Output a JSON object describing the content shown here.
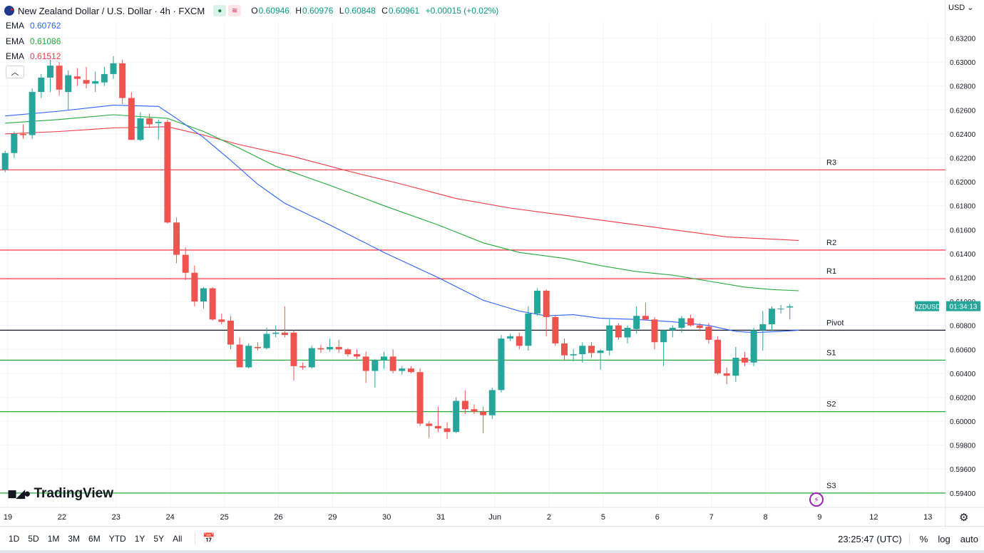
{
  "header": {
    "title": "New Zealand Dollar / U.S. Dollar · 4h · FXCM",
    "ohlc": [
      {
        "k": "O",
        "v": "0.60946"
      },
      {
        "k": "H",
        "v": "0.60976"
      },
      {
        "k": "L",
        "v": "0.60848"
      },
      {
        "k": "C",
        "v": "0.60961"
      }
    ],
    "change": "+0.00015 (+0.02%)"
  },
  "indicators": [
    {
      "label": "EMA",
      "value": "0.60762",
      "color": "#2962ff"
    },
    {
      "label": "EMA",
      "value": "0.61086",
      "color": "#22ab38"
    },
    {
      "label": "EMA",
      "value": "0.61512",
      "color": "#f23645"
    }
  ],
  "currency": "USD",
  "logo_text": "TradingView",
  "timeframes": [
    "1D",
    "5D",
    "1M",
    "3M",
    "6M",
    "YTD",
    "1Y",
    "5Y",
    "All"
  ],
  "status": {
    "time": "23:25:47 (UTC)",
    "percent": "%",
    "log": "log",
    "auto": "auto"
  },
  "chart_data": {
    "type": "candlestick",
    "symbol": "NZDUSD",
    "countdown": "01:34:13",
    "last_price": 0.60961,
    "ylim": [
      0.5928,
      0.6334
    ],
    "y_ticks": [
      "0.63200",
      "0.63000",
      "0.62800",
      "0.62600",
      "0.62400",
      "0.62200",
      "0.62000",
      "0.61800",
      "0.61600",
      "0.61400",
      "0.61200",
      "0.61000",
      "0.60800",
      "0.60600",
      "0.60400",
      "0.60200",
      "0.60000",
      "0.59800",
      "0.59600",
      "0.59400"
    ],
    "x_ticks": [
      {
        "label": "19",
        "bar": 0.3
      },
      {
        "label": "22",
        "bar": 6.3
      },
      {
        "label": "23",
        "bar": 12.3
      },
      {
        "label": "24",
        "bar": 18.3
      },
      {
        "label": "25",
        "bar": 24.3
      },
      {
        "label": "26",
        "bar": 30.3
      },
      {
        "label": "29",
        "bar": 36.3
      },
      {
        "label": "30",
        "bar": 42.3
      },
      {
        "label": "31",
        "bar": 48.3
      },
      {
        "label": "Jun",
        "bar": 54.3
      },
      {
        "label": "2",
        "bar": 60.3
      },
      {
        "label": "5",
        "bar": 66.3
      },
      {
        "label": "6",
        "bar": 72.3
      },
      {
        "label": "7",
        "bar": 78.3
      },
      {
        "label": "8",
        "bar": 84.3
      },
      {
        "label": "9",
        "bar": 90.3
      },
      {
        "label": "12",
        "bar": 96.3
      },
      {
        "label": "13",
        "bar": 102.3
      }
    ],
    "candles": [
      [
        0.621,
        0.6226,
        0.6208,
        0.6224
      ],
      [
        0.6224,
        0.6242,
        0.622,
        0.624
      ],
      [
        0.624,
        0.6248,
        0.6236,
        0.6239
      ],
      [
        0.6239,
        0.6278,
        0.6236,
        0.6275
      ],
      [
        0.6275,
        0.629,
        0.627,
        0.6287
      ],
      [
        0.6287,
        0.6302,
        0.6275,
        0.6297
      ],
      [
        0.6297,
        0.63,
        0.6272,
        0.6277
      ],
      [
        0.6275,
        0.6293,
        0.626,
        0.6289
      ],
      [
        0.6288,
        0.6295,
        0.628,
        0.6286
      ],
      [
        0.6285,
        0.6296,
        0.6278,
        0.6282
      ],
      [
        0.6282,
        0.6292,
        0.6275,
        0.6284
      ],
      [
        0.6283,
        0.6296,
        0.628,
        0.629
      ],
      [
        0.629,
        0.6305,
        0.6286,
        0.6299
      ],
      [
        0.6299,
        0.6302,
        0.6265,
        0.627
      ],
      [
        0.627,
        0.6275,
        0.6235,
        0.6235
      ],
      [
        0.6235,
        0.6258,
        0.6234,
        0.6253
      ],
      [
        0.6253,
        0.6257,
        0.6245,
        0.6248
      ],
      [
        0.6249,
        0.6252,
        0.6235,
        0.625
      ],
      [
        0.625,
        0.6252,
        0.6165,
        0.6166
      ],
      [
        0.6166,
        0.617,
        0.6132,
        0.6139
      ],
      [
        0.6139,
        0.6145,
        0.6118,
        0.6124
      ],
      [
        0.6124,
        0.613,
        0.6096,
        0.61
      ],
      [
        0.61,
        0.6112,
        0.6094,
        0.6111
      ],
      [
        0.6111,
        0.6112,
        0.6084,
        0.6085
      ],
      [
        0.6085,
        0.609,
        0.6081,
        0.6083
      ],
      [
        0.6084,
        0.6088,
        0.606,
        0.6064
      ],
      [
        0.6064,
        0.607,
        0.6045,
        0.6045
      ],
      [
        0.6045,
        0.6065,
        0.6044,
        0.6063
      ],
      [
        0.6062,
        0.6066,
        0.6059,
        0.6061
      ],
      [
        0.6061,
        0.6078,
        0.606,
        0.6073
      ],
      [
        0.6073,
        0.608,
        0.607,
        0.6074
      ],
      [
        0.6074,
        0.6096,
        0.607,
        0.6072
      ],
      [
        0.6074,
        0.6076,
        0.6034,
        0.6046
      ],
      [
        0.6046,
        0.6049,
        0.6043,
        0.6045
      ],
      [
        0.6045,
        0.6063,
        0.6044,
        0.6061
      ],
      [
        0.6061,
        0.6064,
        0.6057,
        0.606
      ],
      [
        0.606,
        0.6069,
        0.6058,
        0.6062
      ],
      [
        0.6062,
        0.6068,
        0.6057,
        0.606
      ],
      [
        0.606,
        0.6061,
        0.6054,
        0.6056
      ],
      [
        0.6056,
        0.606,
        0.6052,
        0.6054
      ],
      [
        0.6054,
        0.6058,
        0.6032,
        0.6042
      ],
      [
        0.6042,
        0.6052,
        0.6028,
        0.6051
      ],
      [
        0.6051,
        0.6058,
        0.6044,
        0.6054
      ],
      [
        0.6054,
        0.606,
        0.604,
        0.6042
      ],
      [
        0.6042,
        0.6046,
        0.6039,
        0.6044
      ],
      [
        0.6044,
        0.6046,
        0.604,
        0.6041
      ],
      [
        0.6041,
        0.6044,
        0.5996,
        0.5998
      ],
      [
        0.5998,
        0.6,
        0.5986,
        0.5996
      ],
      [
        0.5996,
        0.6012,
        0.5991,
        0.5994
      ],
      [
        0.5994,
        0.5999,
        0.5985,
        0.5991
      ],
      [
        0.5991,
        0.602,
        0.599,
        0.6017
      ],
      [
        0.6017,
        0.6026,
        0.6006,
        0.601
      ],
      [
        0.601,
        0.6014,
        0.6006,
        0.6008
      ],
      [
        0.6008,
        0.6012,
        0.599,
        0.6005
      ],
      [
        0.6005,
        0.6028,
        0.6002,
        0.6026
      ],
      [
        0.6026,
        0.6072,
        0.6024,
        0.6069
      ],
      [
        0.6069,
        0.6073,
        0.6067,
        0.6071
      ],
      [
        0.6071,
        0.6074,
        0.606,
        0.6063
      ],
      [
        0.6063,
        0.6096,
        0.6059,
        0.609
      ],
      [
        0.609,
        0.6111,
        0.6088,
        0.6109
      ],
      [
        0.6109,
        0.611,
        0.6071,
        0.6087
      ],
      [
        0.6087,
        0.6089,
        0.6063,
        0.6065
      ],
      [
        0.6065,
        0.6069,
        0.6051,
        0.6055
      ],
      [
        0.6055,
        0.606,
        0.605,
        0.6056
      ],
      [
        0.6056,
        0.6066,
        0.6049,
        0.6063
      ],
      [
        0.6063,
        0.6066,
        0.6053,
        0.6057
      ],
      [
        0.6057,
        0.606,
        0.6043,
        0.6059
      ],
      [
        0.6059,
        0.6085,
        0.6055,
        0.608
      ],
      [
        0.608,
        0.6082,
        0.6068,
        0.607
      ],
      [
        0.607,
        0.608,
        0.6065,
        0.6078
      ],
      [
        0.6077,
        0.6096,
        0.6073,
        0.6088
      ],
      [
        0.6088,
        0.6099,
        0.6084,
        0.6085
      ],
      [
        0.6085,
        0.6087,
        0.606,
        0.6066
      ],
      [
        0.6066,
        0.6076,
        0.6046,
        0.6076
      ],
      [
        0.6076,
        0.608,
        0.607,
        0.6078
      ],
      [
        0.6078,
        0.6088,
        0.6074,
        0.6086
      ],
      [
        0.6086,
        0.6089,
        0.6079,
        0.608
      ],
      [
        0.608,
        0.6082,
        0.6075,
        0.6078
      ],
      [
        0.6079,
        0.6082,
        0.6065,
        0.6068
      ],
      [
        0.6068,
        0.6071,
        0.6039,
        0.604
      ],
      [
        0.604,
        0.6045,
        0.6031,
        0.6038
      ],
      [
        0.6038,
        0.6062,
        0.6033,
        0.6053
      ],
      [
        0.6053,
        0.6058,
        0.6046,
        0.6049
      ],
      [
        0.6049,
        0.6078,
        0.6046,
        0.6076
      ],
      [
        0.6076,
        0.6092,
        0.6059,
        0.6081
      ],
      [
        0.6081,
        0.6096,
        0.6076,
        0.6094
      ],
      [
        0.6094,
        0.6097,
        0.609,
        0.6094
      ],
      [
        0.6095,
        0.6098,
        0.6085,
        0.6096
      ]
    ],
    "ema_blue": [
      [
        0,
        0.6255
      ],
      [
        6,
        0.6259
      ],
      [
        12,
        0.6264
      ],
      [
        17,
        0.6263
      ],
      [
        19,
        0.6253
      ],
      [
        22,
        0.6237
      ],
      [
        25,
        0.6218
      ],
      [
        28,
        0.6198
      ],
      [
        31,
        0.6182
      ],
      [
        36,
        0.6164
      ],
      [
        42,
        0.6141
      ],
      [
        48,
        0.612
      ],
      [
        53,
        0.6101
      ],
      [
        57,
        0.6092
      ],
      [
        60,
        0.6088
      ],
      [
        63,
        0.6089
      ],
      [
        66,
        0.6086
      ],
      [
        70,
        0.6085
      ],
      [
        74,
        0.6083
      ],
      [
        78,
        0.608
      ],
      [
        81,
        0.6075
      ],
      [
        83,
        0.6074
      ],
      [
        86,
        0.6075
      ],
      [
        88,
        0.6076
      ]
    ],
    "ema_green": [
      [
        0,
        0.6249
      ],
      [
        6,
        0.6252
      ],
      [
        12,
        0.6256
      ],
      [
        18,
        0.6253
      ],
      [
        22,
        0.6242
      ],
      [
        26,
        0.6228
      ],
      [
        30,
        0.6213
      ],
      [
        36,
        0.6197
      ],
      [
        42,
        0.618
      ],
      [
        48,
        0.6164
      ],
      [
        53,
        0.6149
      ],
      [
        57,
        0.6141
      ],
      [
        62,
        0.6136
      ],
      [
        66,
        0.613
      ],
      [
        70,
        0.6125
      ],
      [
        74,
        0.6122
      ],
      [
        78,
        0.6117
      ],
      [
        82,
        0.6112
      ],
      [
        85,
        0.611
      ],
      [
        88,
        0.6109
      ]
    ],
    "ema_red": [
      [
        0,
        0.624
      ],
      [
        6,
        0.6242
      ],
      [
        12,
        0.6245
      ],
      [
        18,
        0.6246
      ],
      [
        22,
        0.6239
      ],
      [
        26,
        0.6231
      ],
      [
        32,
        0.6221
      ],
      [
        38,
        0.6209
      ],
      [
        44,
        0.6198
      ],
      [
        50,
        0.6186
      ],
      [
        56,
        0.6178
      ],
      [
        62,
        0.6172
      ],
      [
        68,
        0.6166
      ],
      [
        74,
        0.616
      ],
      [
        80,
        0.6154
      ],
      [
        88,
        0.6151
      ]
    ],
    "levels": [
      {
        "name": "R3",
        "value": 0.621,
        "color": "#f23645"
      },
      {
        "name": "R2",
        "value": 0.6143,
        "color": "#f23645"
      },
      {
        "name": "R1",
        "value": 0.6119,
        "color": "#f23645"
      },
      {
        "name": "Pivot",
        "value": 0.6076,
        "color": "#131722"
      },
      {
        "name": "S1",
        "value": 0.6051,
        "color": "#22ab38"
      },
      {
        "name": "S2",
        "value": 0.6008,
        "color": "#22ab38"
      },
      {
        "name": "S3",
        "value": 0.594,
        "color": "#22ab38"
      }
    ],
    "up_color": "#26a69a",
    "down_color": "#ef5350",
    "grid": true
  }
}
